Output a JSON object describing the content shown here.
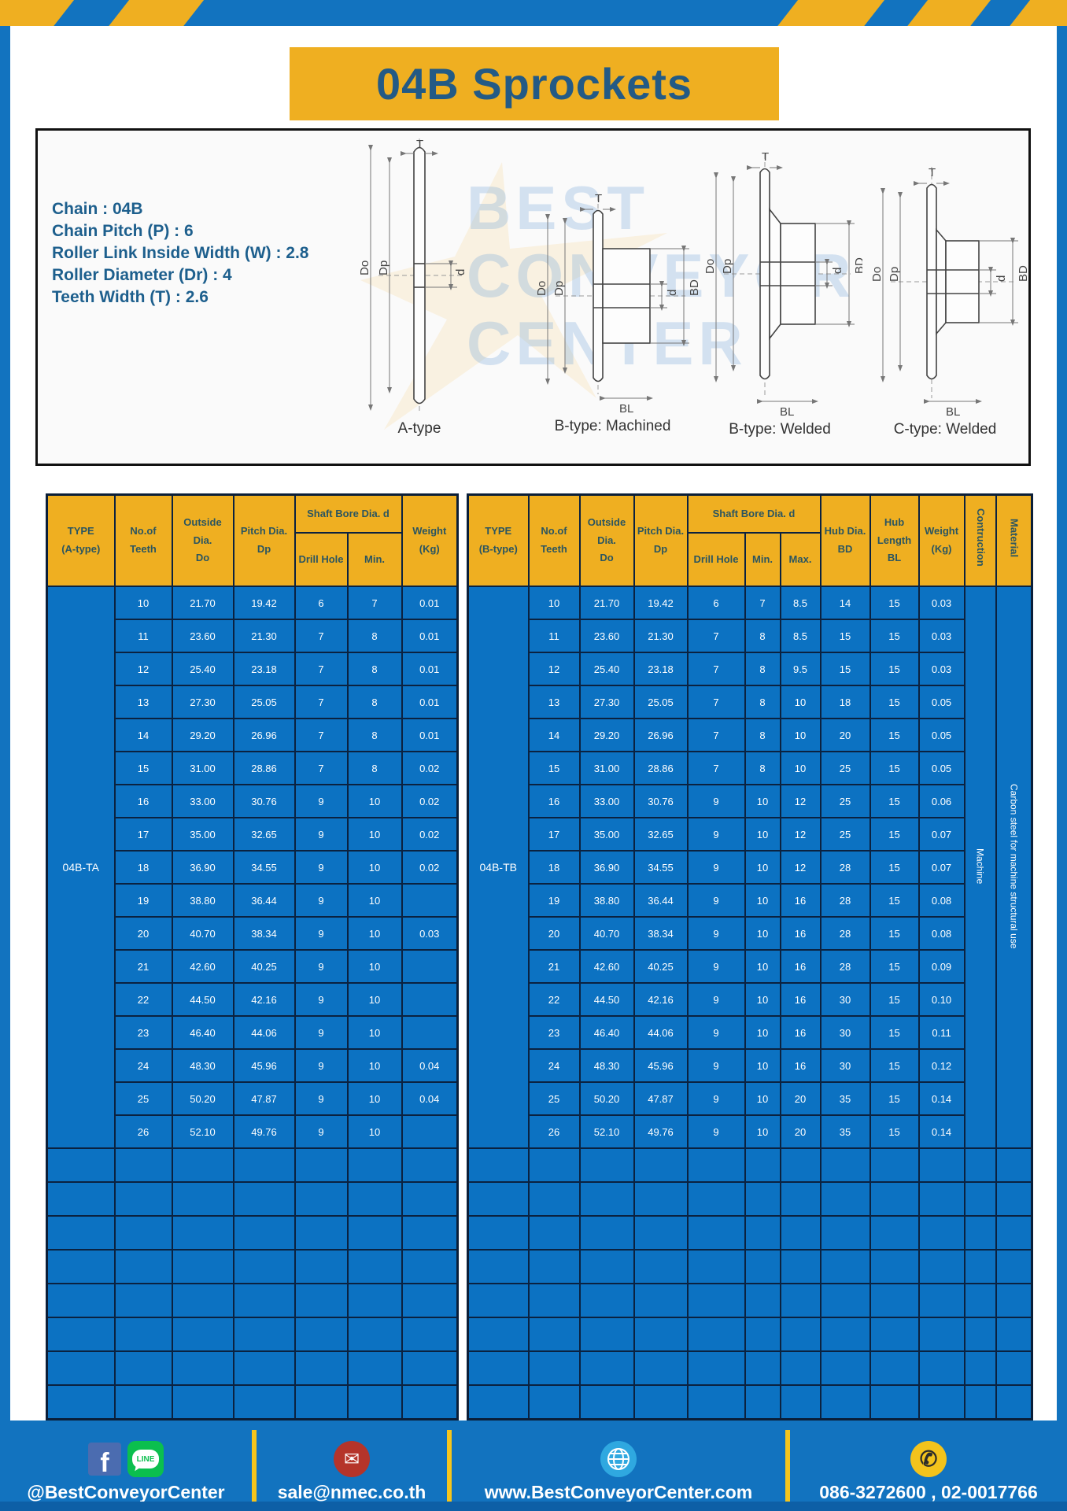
{
  "page": {
    "title": "04B Sprockets"
  },
  "accent_colors": {
    "yellow": "#efaf21",
    "blue": "#1273bf",
    "table_blue": "#0c72c2",
    "grid_navy": "#0b2240"
  },
  "specs": {
    "lines": [
      "Chain : 04B",
      "Chain Pitch (P) : 6",
      "Roller Link Inside Width (W) : 2.8",
      "Roller Diameter (Dr) : 4",
      "Teeth Width (T) : 2.6"
    ]
  },
  "watermark": {
    "line1": "BEST",
    "line2": "CONVEYOR",
    "line3": "CENTER"
  },
  "diagrams": {
    "captions": [
      "A-type",
      "B-type: Machined",
      "B-type: Welded",
      "C-type: Welded"
    ],
    "labels": {
      "t": "T",
      "do": "Do",
      "dp": "Dp",
      "d": "d",
      "bd": "BD",
      "bl": "BL"
    }
  },
  "table_a": {
    "type_label": "04B-TA",
    "headers": {
      "type1": "TYPE",
      "type2": "(A-type)",
      "teeth1": "No.of",
      "teeth2": "Teeth",
      "od1": "Outside",
      "od2": "Dia.",
      "od3": "Do",
      "pd1": "Pitch Dia.",
      "pd2": "Dp",
      "shaft": "Shaft Bore Dia. d",
      "drill": "Drill Hole",
      "min": "Min.",
      "w1": "Weight",
      "w2": "(Kg)"
    },
    "rows": [
      [
        "10",
        "21.70",
        "19.42",
        "6",
        "7",
        "0.01"
      ],
      [
        "11",
        "23.60",
        "21.30",
        "7",
        "8",
        "0.01"
      ],
      [
        "12",
        "25.40",
        "23.18",
        "7",
        "8",
        "0.01"
      ],
      [
        "13",
        "27.30",
        "25.05",
        "7",
        "8",
        "0.01"
      ],
      [
        "14",
        "29.20",
        "26.96",
        "7",
        "8",
        "0.01"
      ],
      [
        "15",
        "31.00",
        "28.86",
        "7",
        "8",
        "0.02"
      ],
      [
        "16",
        "33.00",
        "30.76",
        "9",
        "10",
        "0.02"
      ],
      [
        "17",
        "35.00",
        "32.65",
        "9",
        "10",
        "0.02"
      ],
      [
        "18",
        "36.90",
        "34.55",
        "9",
        "10",
        "0.02"
      ],
      [
        "19",
        "38.80",
        "36.44",
        "9",
        "10",
        ""
      ],
      [
        "20",
        "40.70",
        "38.34",
        "9",
        "10",
        "0.03"
      ],
      [
        "21",
        "42.60",
        "40.25",
        "9",
        "10",
        ""
      ],
      [
        "22",
        "44.50",
        "42.16",
        "9",
        "10",
        ""
      ],
      [
        "23",
        "46.40",
        "44.06",
        "9",
        "10",
        ""
      ],
      [
        "24",
        "48.30",
        "45.96",
        "9",
        "10",
        "0.04"
      ],
      [
        "25",
        "50.20",
        "47.87",
        "9",
        "10",
        "0.04"
      ],
      [
        "26",
        "52.10",
        "49.76",
        "9",
        "10",
        ""
      ]
    ],
    "empty_row_count": 8
  },
  "table_b": {
    "type_label": "04B-TB",
    "headers": {
      "type1": "TYPE",
      "type2": "(B-type)",
      "teeth1": "No.of",
      "teeth2": "Teeth",
      "od1": "Outside",
      "od2": "Dia.",
      "od3": "Do",
      "pd1": "Pitch Dia.",
      "pd2": "Dp",
      "shaft": "Shaft Bore Dia. d",
      "drill": "Drill Hole",
      "min": "Min.",
      "max": "Max.",
      "hubd1": "Hub Dia.",
      "hubd2": "BD",
      "hubl1": "Hub",
      "hubl2": "Length",
      "hubl3": "BL",
      "w1": "Weight",
      "w2": "(Kg)",
      "construction": "Contruction",
      "material": "Material"
    },
    "construction_value": "Machine",
    "material_value": "Carbon steel for machine structural use",
    "rows": [
      [
        "10",
        "21.70",
        "19.42",
        "6",
        "7",
        "8.5",
        "14",
        "15",
        "0.03"
      ],
      [
        "11",
        "23.60",
        "21.30",
        "7",
        "8",
        "8.5",
        "15",
        "15",
        "0.03"
      ],
      [
        "12",
        "25.40",
        "23.18",
        "7",
        "8",
        "9.5",
        "15",
        "15",
        "0.03"
      ],
      [
        "13",
        "27.30",
        "25.05",
        "7",
        "8",
        "10",
        "18",
        "15",
        "0.05"
      ],
      [
        "14",
        "29.20",
        "26.96",
        "7",
        "8",
        "10",
        "20",
        "15",
        "0.05"
      ],
      [
        "15",
        "31.00",
        "28.86",
        "7",
        "8",
        "10",
        "25",
        "15",
        "0.05"
      ],
      [
        "16",
        "33.00",
        "30.76",
        "9",
        "10",
        "12",
        "25",
        "15",
        "0.06"
      ],
      [
        "17",
        "35.00",
        "32.65",
        "9",
        "10",
        "12",
        "25",
        "15",
        "0.07"
      ],
      [
        "18",
        "36.90",
        "34.55",
        "9",
        "10",
        "12",
        "28",
        "15",
        "0.07"
      ],
      [
        "19",
        "38.80",
        "36.44",
        "9",
        "10",
        "16",
        "28",
        "15",
        "0.08"
      ],
      [
        "20",
        "40.70",
        "38.34",
        "9",
        "10",
        "16",
        "28",
        "15",
        "0.08"
      ],
      [
        "21",
        "42.60",
        "40.25",
        "9",
        "10",
        "16",
        "28",
        "15",
        "0.09"
      ],
      [
        "22",
        "44.50",
        "42.16",
        "9",
        "10",
        "16",
        "30",
        "15",
        "0.10"
      ],
      [
        "23",
        "46.40",
        "44.06",
        "9",
        "10",
        "16",
        "30",
        "15",
        "0.11"
      ],
      [
        "24",
        "48.30",
        "45.96",
        "9",
        "10",
        "16",
        "30",
        "15",
        "0.12"
      ],
      [
        "25",
        "50.20",
        "47.87",
        "9",
        "10",
        "20",
        "35",
        "15",
        "0.14"
      ],
      [
        "26",
        "52.10",
        "49.76",
        "9",
        "10",
        "20",
        "35",
        "15",
        "0.14"
      ]
    ],
    "empty_row_count": 8
  },
  "footer": {
    "fb_letter": "f",
    "line_text": "LINE",
    "social_label": "@BestConveyorCenter",
    "mail_glyph": "✉",
    "email": "sale@nmec.co.th",
    "website": "www.BestConveyorCenter.com",
    "phone_glyph": "✆",
    "phone": "086-3272600 , 02-0017766"
  }
}
